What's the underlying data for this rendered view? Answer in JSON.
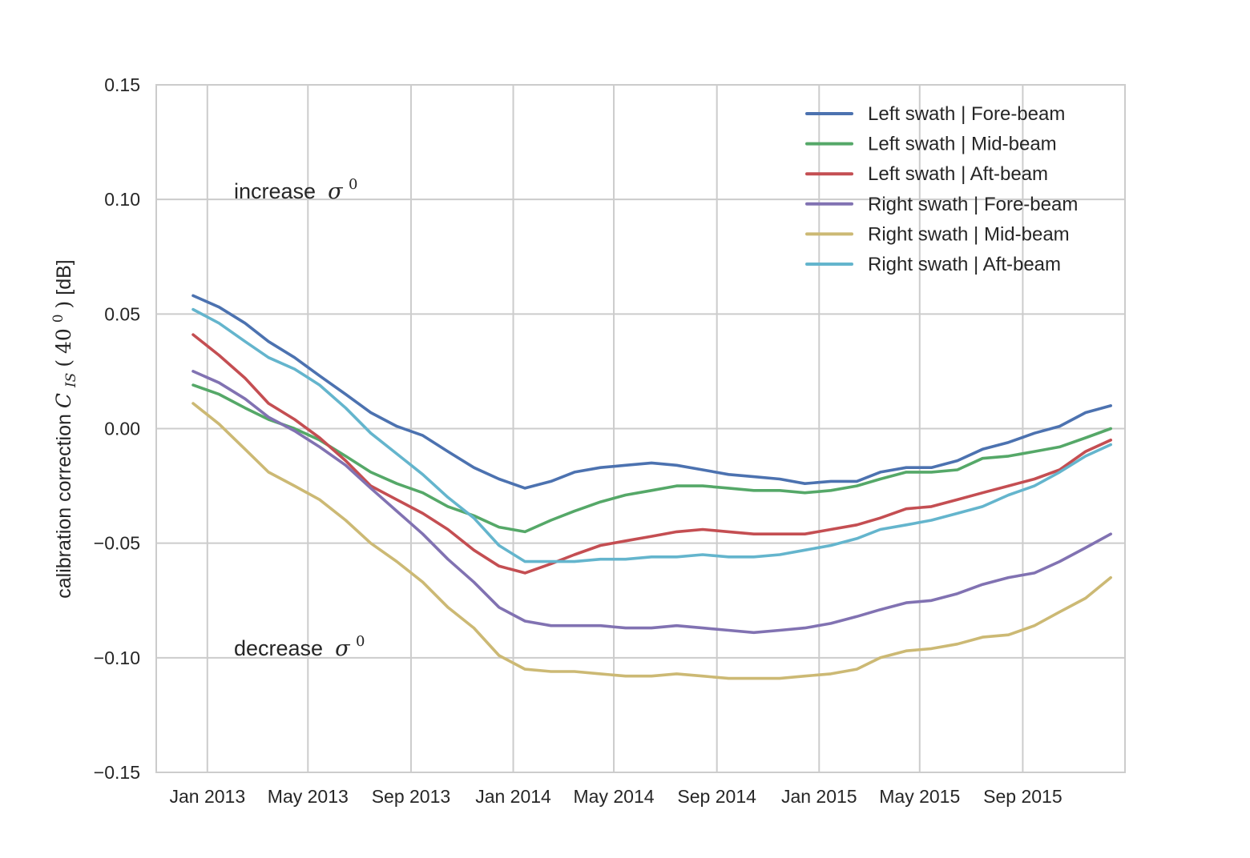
{
  "chart_data": {
    "type": "line",
    "title": "",
    "xlabel": "",
    "ylabel": {
      "text": "calibration correction",
      "symbol": "C",
      "subscript": "IS",
      "argument": "40",
      "argument_superscript": "0",
      "unit": "[dB]"
    },
    "ylim": [
      -0.15,
      0.15
    ],
    "yticks": [
      {
        "value": 0.15,
        "label": "0.15"
      },
      {
        "value": 0.1,
        "label": "0.10"
      },
      {
        "value": 0.05,
        "label": "0.05"
      },
      {
        "value": 0.0,
        "label": "0.00"
      },
      {
        "value": -0.05,
        "label": "−0.05"
      },
      {
        "value": -0.1,
        "label": "−0.10"
      },
      {
        "value": -0.15,
        "label": "−0.15"
      }
    ],
    "xlim": [
      "2012-11-01",
      "2016-01-01"
    ],
    "xticks": [
      {
        "value": "2013-01-01",
        "label": "Jan 2013"
      },
      {
        "value": "2013-05-01",
        "label": "May 2013"
      },
      {
        "value": "2013-09-01",
        "label": "Sep 2013"
      },
      {
        "value": "2014-01-01",
        "label": "Jan 2014"
      },
      {
        "value": "2014-05-01",
        "label": "May 2014"
      },
      {
        "value": "2014-09-01",
        "label": "Sep 2014"
      },
      {
        "value": "2015-01-01",
        "label": "Jan 2015"
      },
      {
        "value": "2015-05-01",
        "label": "May 2015"
      },
      {
        "value": "2015-09-01",
        "label": "Sep 2015"
      }
    ],
    "grid": true,
    "legend_position": "top-right",
    "x": [
      "2012-12-15",
      "2013-01-15",
      "2013-02-15",
      "2013-03-15",
      "2013-04-15",
      "2013-05-15",
      "2013-06-15",
      "2013-07-15",
      "2013-08-15",
      "2013-09-15",
      "2013-10-15",
      "2013-11-15",
      "2013-12-15",
      "2014-01-15",
      "2014-02-15",
      "2014-03-15",
      "2014-04-15",
      "2014-05-15",
      "2014-06-15",
      "2014-07-15",
      "2014-08-15",
      "2014-09-15",
      "2014-10-15",
      "2014-11-15",
      "2014-12-15",
      "2015-01-15",
      "2015-02-15",
      "2015-03-15",
      "2015-04-15",
      "2015-05-15",
      "2015-06-15",
      "2015-07-15",
      "2015-08-15",
      "2015-09-15",
      "2015-10-15",
      "2015-11-15",
      "2015-12-15"
    ],
    "series": [
      {
        "name": "Left swath | Fore-beam",
        "color": "#4c72b0",
        "values": [
          0.058,
          0.053,
          0.046,
          0.038,
          0.031,
          0.023,
          0.015,
          0.007,
          0.001,
          -0.003,
          -0.01,
          -0.017,
          -0.022,
          -0.026,
          -0.023,
          -0.019,
          -0.017,
          -0.016,
          -0.015,
          -0.016,
          -0.018,
          -0.02,
          -0.021,
          -0.022,
          -0.024,
          -0.023,
          -0.023,
          -0.019,
          -0.017,
          -0.017,
          -0.014,
          -0.009,
          -0.006,
          -0.002,
          0.001,
          0.007,
          0.01
        ]
      },
      {
        "name": "Left swath | Mid-beam",
        "color": "#55a868",
        "values": [
          0.019,
          0.015,
          0.009,
          0.004,
          0.0,
          -0.005,
          -0.012,
          -0.019,
          -0.024,
          -0.028,
          -0.034,
          -0.038,
          -0.043,
          -0.045,
          -0.04,
          -0.036,
          -0.032,
          -0.029,
          -0.027,
          -0.025,
          -0.025,
          -0.026,
          -0.027,
          -0.027,
          -0.028,
          -0.027,
          -0.025,
          -0.022,
          -0.019,
          -0.019,
          -0.018,
          -0.013,
          -0.012,
          -0.01,
          -0.008,
          -0.004,
          0.0
        ]
      },
      {
        "name": "Left swath | Aft-beam",
        "color": "#c44e52",
        "values": [
          0.041,
          0.032,
          0.022,
          0.011,
          0.004,
          -0.004,
          -0.014,
          -0.025,
          -0.031,
          -0.037,
          -0.044,
          -0.053,
          -0.06,
          -0.063,
          -0.059,
          -0.055,
          -0.051,
          -0.049,
          -0.047,
          -0.045,
          -0.044,
          -0.045,
          -0.046,
          -0.046,
          -0.046,
          -0.044,
          -0.042,
          -0.039,
          -0.035,
          -0.034,
          -0.031,
          -0.028,
          -0.025,
          -0.022,
          -0.018,
          -0.01,
          -0.005
        ]
      },
      {
        "name": "Right swath | Fore-beam",
        "color": "#8172b2",
        "values": [
          0.025,
          0.02,
          0.013,
          0.005,
          -0.001,
          -0.008,
          -0.016,
          -0.026,
          -0.036,
          -0.046,
          -0.057,
          -0.067,
          -0.078,
          -0.084,
          -0.086,
          -0.086,
          -0.086,
          -0.087,
          -0.087,
          -0.086,
          -0.087,
          -0.088,
          -0.089,
          -0.088,
          -0.087,
          -0.085,
          -0.082,
          -0.079,
          -0.076,
          -0.075,
          -0.072,
          -0.068,
          -0.065,
          -0.063,
          -0.058,
          -0.052,
          -0.046
        ]
      },
      {
        "name": "Right swath | Mid-beam",
        "color": "#ccb974",
        "values": [
          0.011,
          0.002,
          -0.009,
          -0.019,
          -0.025,
          -0.031,
          -0.04,
          -0.05,
          -0.058,
          -0.067,
          -0.078,
          -0.087,
          -0.099,
          -0.105,
          -0.106,
          -0.106,
          -0.107,
          -0.108,
          -0.108,
          -0.107,
          -0.108,
          -0.109,
          -0.109,
          -0.109,
          -0.108,
          -0.107,
          -0.105,
          -0.1,
          -0.097,
          -0.096,
          -0.094,
          -0.091,
          -0.09,
          -0.086,
          -0.08,
          -0.074,
          -0.065
        ]
      },
      {
        "name": "Right swath | Aft-beam",
        "color": "#64b5cd",
        "values": [
          0.052,
          0.046,
          0.038,
          0.031,
          0.026,
          0.019,
          0.009,
          -0.002,
          -0.011,
          -0.02,
          -0.03,
          -0.039,
          -0.051,
          -0.058,
          -0.058,
          -0.058,
          -0.057,
          -0.057,
          -0.056,
          -0.056,
          -0.055,
          -0.056,
          -0.056,
          -0.055,
          -0.053,
          -0.051,
          -0.048,
          -0.044,
          -0.042,
          -0.04,
          -0.037,
          -0.034,
          -0.029,
          -0.025,
          -0.019,
          -0.012,
          -0.007
        ]
      }
    ],
    "annotations": [
      {
        "text": "increase ",
        "symbol": "σ",
        "superscript": "0"
      },
      {
        "text": "decrease ",
        "symbol": "σ",
        "superscript": "0"
      }
    ]
  }
}
